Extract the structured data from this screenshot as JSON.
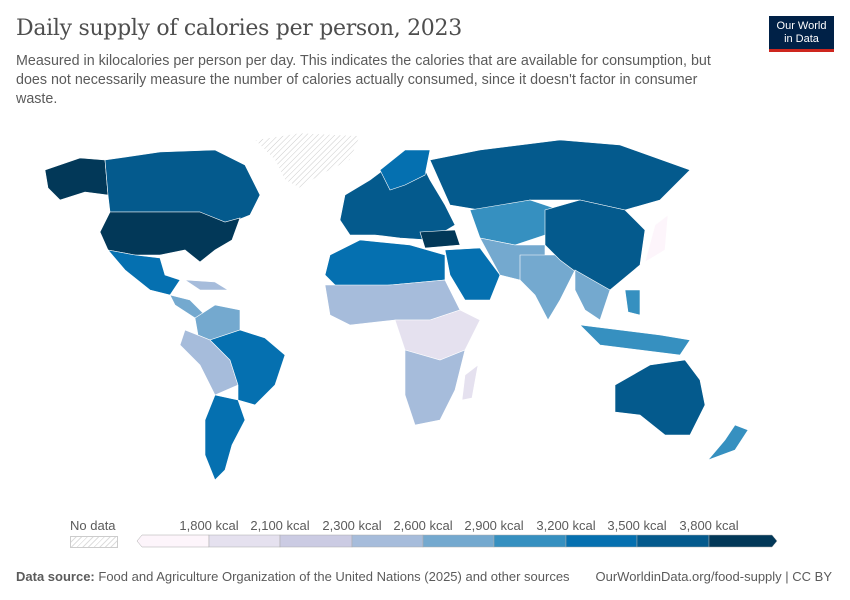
{
  "title": "Daily supply of calories per person, 2023",
  "subtitle": "Measured in kilocalories per person per day. This indicates the calories that are available for consumption, but does not necessarily measure the number of calories actually consumed, since it doesn't factor in consumer waste.",
  "logo": {
    "line1": "Our World",
    "line2": "in Data"
  },
  "legend": {
    "no_data_label": "No data",
    "ticks": [
      "1,800 kcal",
      "2,100 kcal",
      "2,300 kcal",
      "2,600 kcal",
      "2,900 kcal",
      "3,200 kcal",
      "3,500 kcal",
      "3,800 kcal"
    ],
    "bin_colors": [
      "#fdf5fb",
      "#e5e1ef",
      "#cbcbe3",
      "#a6bcdb",
      "#74a9cf",
      "#3690c0",
      "#0570b0",
      "#045a8d",
      "#023858"
    ]
  },
  "footer": {
    "source_label": "Data source:",
    "source_text": "Food and Agriculture Organization of the United Nations (2025) and other sources",
    "url": "OurWorldinData.org/food-supply | CC BY"
  }
}
